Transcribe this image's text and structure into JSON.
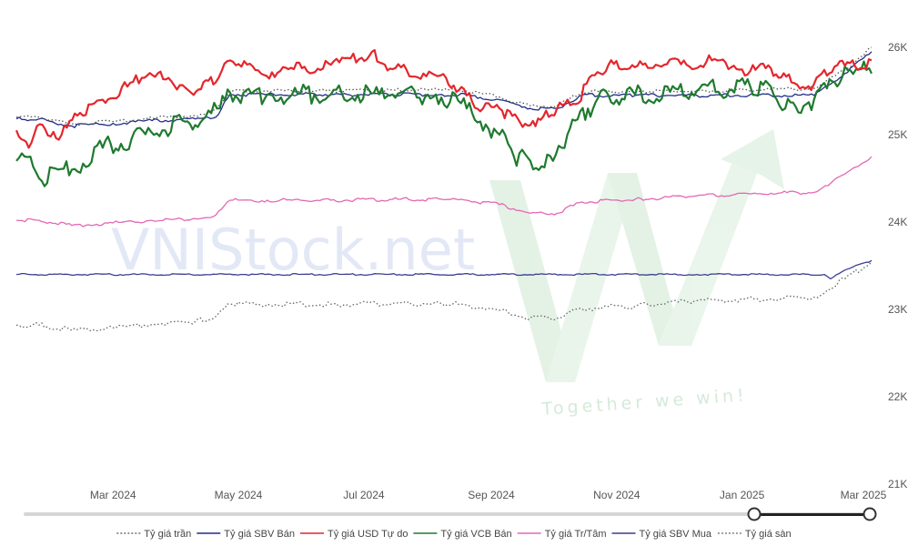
{
  "watermark": {
    "brand": "VNIStock.net",
    "slogan": "Together we win!"
  },
  "chart_data": {
    "type": "line",
    "ylim": [
      21000,
      26000
    ],
    "yticks": [
      "21K",
      "22K",
      "23K",
      "24K",
      "25K",
      "26K"
    ],
    "xlim": [
      "2024-01-14",
      "2025-03-05"
    ],
    "xticks": [
      "Mar 2024",
      "May 2024",
      "Jul 2024",
      "Sep 2024",
      "Nov 2024",
      "Jan 2025",
      "Mar 2025"
    ],
    "grid": false,
    "legend_position": "bottom",
    "range_slider": {
      "start_fraction": 0.0,
      "end_fraction": 1.0
    },
    "series": [
      {
        "name": "Tỷ giá trần",
        "color": "#555555",
        "style": "dotted",
        "x": [
          "2024-01-14",
          "2024-01-25",
          "2024-02-10",
          "2024-03-01",
          "2024-03-20",
          "2024-04-10",
          "2024-04-20",
          "2024-04-27",
          "2024-05-15",
          "2024-06-15",
          "2024-07-15",
          "2024-08-08",
          "2024-08-20",
          "2024-09-05",
          "2024-09-20",
          "2024-10-03",
          "2024-10-15",
          "2024-11-10",
          "2024-12-10",
          "2025-01-15",
          "2025-02-05",
          "2025-02-20",
          "2025-03-05"
        ],
        "values": [
          25200,
          25200,
          25120,
          25150,
          25190,
          25220,
          25280,
          25500,
          25500,
          25500,
          25510,
          25510,
          25500,
          25430,
          25330,
          25330,
          25490,
          25500,
          25500,
          25520,
          25530,
          25740,
          26000
        ]
      },
      {
        "name": "Tỷ giá SBV Bán",
        "color": "#1f2d86",
        "style": "solid",
        "x": [
          "2024-01-14",
          "2024-01-25",
          "2024-02-10",
          "2024-03-01",
          "2024-03-20",
          "2024-04-10",
          "2024-04-20",
          "2024-04-27",
          "2024-05-15",
          "2024-06-15",
          "2024-07-15",
          "2024-08-08",
          "2024-08-20",
          "2024-09-05",
          "2024-09-20",
          "2024-10-03",
          "2024-10-15",
          "2024-11-10",
          "2024-12-10",
          "2025-01-15",
          "2025-02-05",
          "2025-02-20",
          "2025-03-05"
        ],
        "values": [
          25180,
          25180,
          25100,
          25130,
          25160,
          25180,
          25200,
          25460,
          25460,
          25460,
          25460,
          25460,
          25450,
          25400,
          25300,
          25300,
          25450,
          25450,
          25450,
          25450,
          25450,
          25700,
          25950
        ]
      },
      {
        "name": "Tỷ giá USD Tự do",
        "color": "#e4262c",
        "style": "solid",
        "x": [
          "2024-01-14",
          "2024-01-20",
          "2024-01-24",
          "2024-02-05",
          "2024-02-14",
          "2024-02-25",
          "2024-03-08",
          "2024-03-15",
          "2024-03-28",
          "2024-04-08",
          "2024-04-14",
          "2024-04-20",
          "2024-04-27",
          "2024-05-12",
          "2024-05-28",
          "2024-06-15",
          "2024-06-30",
          "2024-07-05",
          "2024-07-15",
          "2024-07-30",
          "2024-08-10",
          "2024-08-20",
          "2024-08-28",
          "2024-09-05",
          "2024-09-15",
          "2024-09-25",
          "2024-10-03",
          "2024-10-12",
          "2024-10-20",
          "2024-10-28",
          "2024-11-06",
          "2024-11-20",
          "2024-12-05",
          "2024-12-20",
          "2025-01-05",
          "2025-01-15",
          "2025-01-25",
          "2025-02-05",
          "2025-02-15",
          "2025-02-25",
          "2025-03-05"
        ],
        "values": [
          25050,
          24850,
          25100,
          25000,
          25250,
          25400,
          25550,
          25650,
          25650,
          25480,
          25600,
          25600,
          25850,
          25700,
          25750,
          25800,
          25880,
          25950,
          25750,
          25700,
          25650,
          25450,
          25300,
          25300,
          25140,
          25170,
          25300,
          25350,
          25680,
          25800,
          25750,
          25800,
          25800,
          25850,
          25730,
          25760,
          25600,
          25580,
          25780,
          25780,
          25850
        ]
      },
      {
        "name": "Tỷ giá VCB Bán",
        "color": "#1e7a2e",
        "style": "solid",
        "x": [
          "2024-01-14",
          "2024-01-18",
          "2024-01-25",
          "2024-02-10",
          "2024-02-25",
          "2024-03-10",
          "2024-03-25",
          "2024-04-05",
          "2024-04-15",
          "2024-04-22",
          "2024-04-27",
          "2024-05-15",
          "2024-06-15",
          "2024-07-15",
          "2024-08-05",
          "2024-08-20",
          "2024-09-05",
          "2024-09-12",
          "2024-09-20",
          "2024-10-01",
          "2024-10-08",
          "2024-10-18",
          "2024-10-28",
          "2024-11-10",
          "2024-12-10",
          "2025-01-05",
          "2025-01-15",
          "2025-01-22",
          "2025-02-05",
          "2025-02-15",
          "2025-02-20",
          "2025-02-28",
          "2025-03-05"
        ],
        "values": [
          24700,
          24750,
          24500,
          24600,
          24850,
          24950,
          25050,
          25150,
          25200,
          25300,
          25480,
          25460,
          25460,
          25460,
          25460,
          25300,
          25000,
          24750,
          24700,
          24700,
          25000,
          25300,
          25450,
          25460,
          25500,
          25550,
          25550,
          25300,
          25400,
          25600,
          25780,
          25750,
          25700
        ]
      },
      {
        "name": "Tỷ giá Tr/Tâm",
        "color": "#e368b5",
        "style": "solid",
        "x": [
          "2024-01-14",
          "2024-01-25",
          "2024-02-10",
          "2024-03-01",
          "2024-03-20",
          "2024-04-10",
          "2024-04-20",
          "2024-04-27",
          "2024-05-15",
          "2024-06-15",
          "2024-07-15",
          "2024-08-08",
          "2024-08-20",
          "2024-09-05",
          "2024-09-20",
          "2024-10-03",
          "2024-10-15",
          "2024-11-10",
          "2024-12-10",
          "2025-01-15",
          "2025-02-05",
          "2025-02-20",
          "2025-03-05"
        ],
        "values": [
          24020,
          24020,
          23960,
          23990,
          24020,
          24040,
          24080,
          24250,
          24250,
          24250,
          24260,
          24260,
          24250,
          24200,
          24100,
          24100,
          24230,
          24260,
          24300,
          24330,
          24340,
          24550,
          24750
        ]
      },
      {
        "name": "Tỷ giá SBV Mua",
        "color": "#3b3f8f",
        "style": "solid",
        "x": [
          "2024-01-14",
          "2024-06-15",
          "2024-12-10",
          "2025-02-10",
          "2025-02-13",
          "2025-02-20",
          "2025-03-05"
        ],
        "values": [
          23400,
          23400,
          23400,
          23400,
          23350,
          23450,
          23560
        ]
      },
      {
        "name": "Tỷ giá sàn",
        "color": "#666666",
        "style": "dotted",
        "x": [
          "2024-01-14",
          "2024-01-25",
          "2024-02-10",
          "2024-03-01",
          "2024-03-20",
          "2024-04-10",
          "2024-04-20",
          "2024-04-27",
          "2024-05-15",
          "2024-06-15",
          "2024-07-15",
          "2024-08-08",
          "2024-08-20",
          "2024-09-05",
          "2024-09-20",
          "2024-10-03",
          "2024-10-15",
          "2024-11-10",
          "2024-12-10",
          "2025-01-15",
          "2025-02-05",
          "2025-02-20",
          "2025-03-05"
        ],
        "values": [
          22820,
          22820,
          22760,
          22790,
          22830,
          22860,
          22920,
          23060,
          23060,
          23060,
          23070,
          23070,
          23050,
          22990,
          22900,
          22900,
          23010,
          23040,
          23100,
          23120,
          23140,
          23350,
          23550
        ]
      }
    ]
  }
}
